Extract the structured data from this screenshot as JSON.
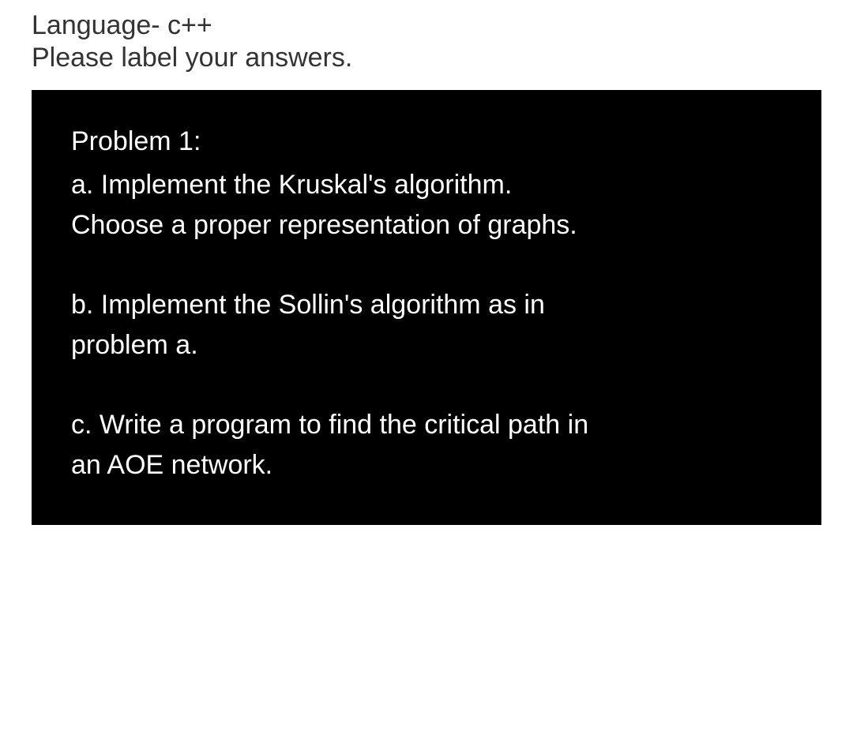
{
  "header": {
    "line1": "Language- c++",
    "line2": "Please label your answers."
  },
  "problem": {
    "title": "Problem 1:",
    "parts": [
      {
        "line1": "a. Implement the Kruskal's algorithm.",
        "line2": "Choose a proper representation of graphs."
      },
      {
        "line1": "b. Implement the Sollin's algorithm as in",
        "line2": "problem a."
      },
      {
        "line1": "c.  Write a program to find the critical path in",
        "line2": "an AOE network."
      }
    ]
  },
  "styling": {
    "background_color": "#ffffff",
    "header_text_color": "#333333",
    "box_background_color": "#000000",
    "box_text_color": "#ffffff",
    "header_fontsize": 34,
    "body_fontsize": 34
  }
}
